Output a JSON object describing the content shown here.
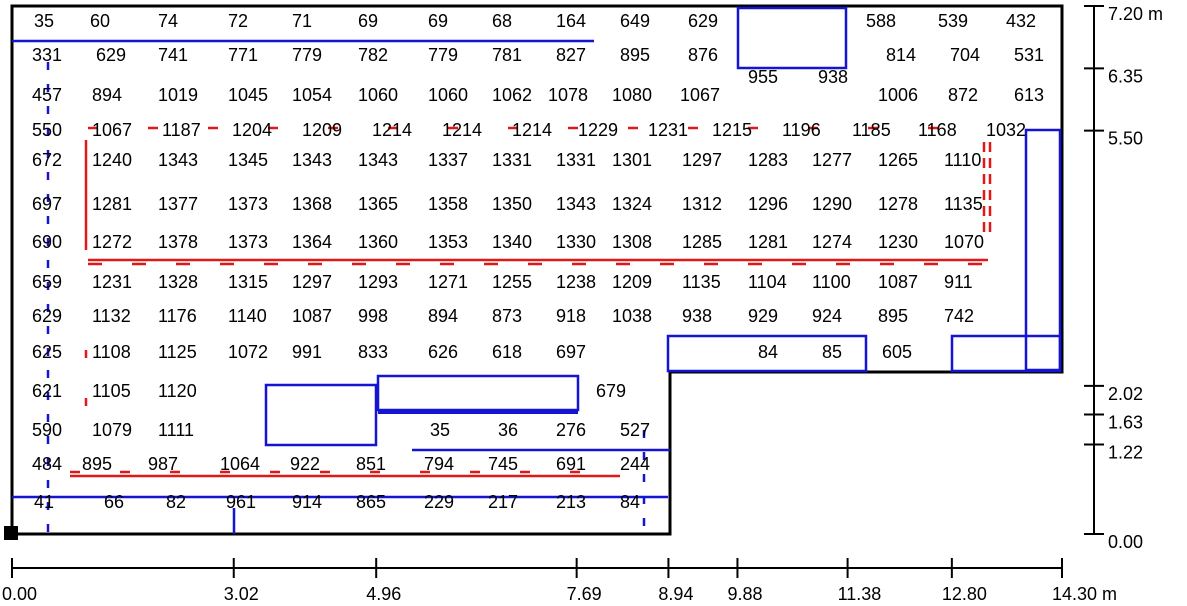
{
  "colors": {
    "outline": "#000000",
    "blue": "#1414d2",
    "red": "#e01818"
  },
  "scale_x": {
    "unit": "m",
    "ticks": [
      {
        "value": 0.0,
        "label": "0.00"
      },
      {
        "value": 3.02,
        "label": "3.02"
      },
      {
        "value": 4.96,
        "label": "4.96"
      },
      {
        "value": 7.69,
        "label": "7.69"
      },
      {
        "value": 8.94,
        "label": "8.94"
      },
      {
        "value": 9.88,
        "label": "9.88"
      },
      {
        "value": 11.38,
        "label": "11.38"
      },
      {
        "value": 12.8,
        "label": "12.80"
      },
      {
        "value": 14.3,
        "label": "14.30 m"
      }
    ]
  },
  "scale_y": {
    "unit": "m",
    "ticks": [
      {
        "value": 0.0,
        "label": "0.00"
      },
      {
        "value": 1.22,
        "label": "1.22"
      },
      {
        "value": 1.63,
        "label": "1.63"
      },
      {
        "value": 2.02,
        "label": "2.02"
      },
      {
        "value": 5.5,
        "label": "5.50"
      },
      {
        "value": 6.35,
        "label": "6.35"
      },
      {
        "value": 7.2,
        "label": "7.20 m"
      }
    ]
  },
  "rows": [
    [
      "35",
      "60",
      "74",
      "72",
      "71",
      "69",
      "69",
      "68",
      "164",
      "649",
      "629",
      "588",
      "539",
      "432"
    ],
    [
      "331",
      "629",
      "741",
      "771",
      "779",
      "782",
      "779",
      "781",
      "827",
      "895",
      "876",
      "814",
      "704",
      "531"
    ],
    [
      "457",
      "894",
      "1019",
      "1045",
      "1054",
      "1060",
      "1060",
      "1062",
      "1078",
      "1080",
      "1067",
      "955",
      "938",
      "1006",
      "872",
      "613"
    ],
    [
      "550",
      "1067",
      "1187",
      "1204",
      "1209",
      "1214",
      "1214",
      "1214",
      "1229",
      "1231",
      "1215",
      "1196",
      "1185",
      "1168",
      "1032"
    ],
    [
      "672",
      "1240",
      "1343",
      "1345",
      "1343",
      "1343",
      "1337",
      "1331",
      "1331",
      "1301",
      "1297",
      "1283",
      "1277",
      "1265",
      "1110"
    ],
    [
      "697",
      "1281",
      "1377",
      "1373",
      "1368",
      "1365",
      "1358",
      "1350",
      "1343",
      "1324",
      "1312",
      "1296",
      "1290",
      "1278",
      "1135"
    ],
    [
      "690",
      "1272",
      "1378",
      "1373",
      "1364",
      "1360",
      "1353",
      "1340",
      "1330",
      "1308",
      "1285",
      "1281",
      "1274",
      "1230",
      "1070"
    ],
    [
      "659",
      "1231",
      "1328",
      "1315",
      "1297",
      "1293",
      "1271",
      "1255",
      "1238",
      "1209",
      "1135",
      "1104",
      "1100",
      "1087",
      "911"
    ],
    [
      "629",
      "1132",
      "1176",
      "1140",
      "1087",
      "998",
      "894",
      "873",
      "918",
      "1038",
      "938",
      "929",
      "924",
      "895",
      "742"
    ],
    [
      "625",
      "1108",
      "1125",
      "1072",
      "991",
      "833",
      "626",
      "618",
      "697",
      "84",
      "85",
      "605"
    ],
    [
      "621",
      "1105",
      "1120",
      "679"
    ],
    [
      "590",
      "1079",
      "1111",
      "35",
      "36",
      "276",
      "527"
    ],
    [
      "484",
      "895",
      "987",
      "1064",
      "922",
      "851",
      "794",
      "745",
      "691",
      "244"
    ],
    [
      "41",
      "66",
      "82",
      "961",
      "914",
      "865",
      "229",
      "217",
      "213",
      "84"
    ]
  ]
}
